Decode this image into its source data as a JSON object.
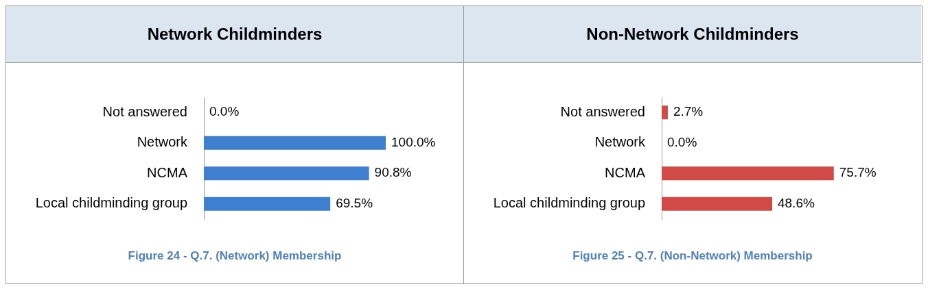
{
  "chart_data": [
    {
      "type": "bar",
      "orientation": "horizontal",
      "title": "Network Childminders",
      "categories": [
        "Not answered",
        "Network",
        "NCMA",
        "Local childminding group"
      ],
      "values": [
        0.0,
        100.0,
        90.8,
        69.5
      ],
      "value_labels": [
        "0.0%",
        "100.0%",
        "90.8%",
        "69.5%"
      ],
      "color": "#3f7fcf",
      "annotations": [
        "Figure 24 - Q.7. (Network) Membership"
      ]
    },
    {
      "type": "bar",
      "orientation": "horizontal",
      "title": "Non-Network Childminders",
      "categories": [
        "Not answered",
        "Network",
        "NCMA",
        "Local childminding group"
      ],
      "values": [
        2.7,
        0.0,
        75.7,
        48.6
      ],
      "value_labels": [
        "2.7%",
        "0.0%",
        "75.7%",
        "48.6%"
      ],
      "color": "#d24a46",
      "annotations": [
        "Figure 25 - Q.7. (Non-Network) Membership"
      ]
    }
  ]
}
